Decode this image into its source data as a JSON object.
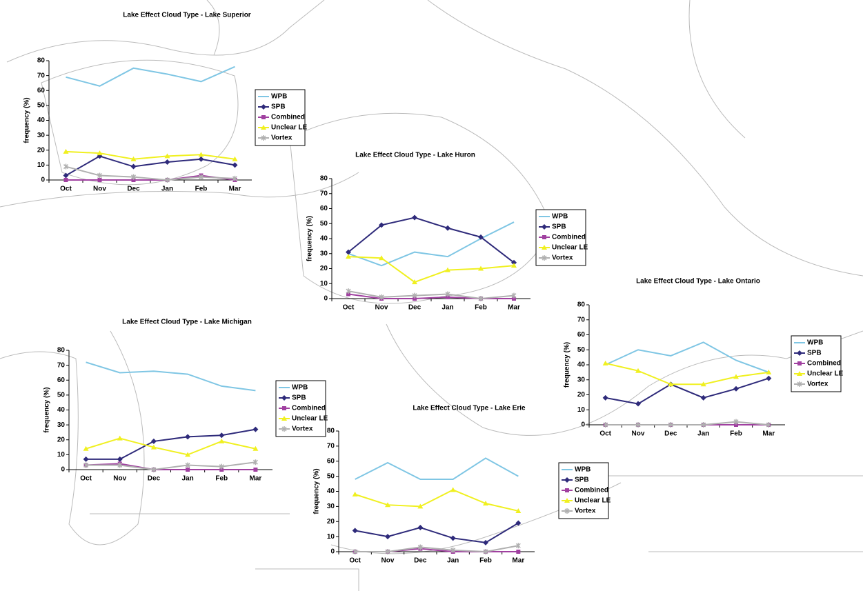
{
  "chart_data": [
    {
      "type": "line",
      "title": "Lake Effect Cloud Type - Lake Superior",
      "y_label": "frequency (%)",
      "categories": [
        "Oct",
        "Nov",
        "Dec",
        "Jan",
        "Feb",
        "Mar"
      ],
      "ylim": [
        0,
        80
      ],
      "yticks": [
        0,
        10,
        20,
        30,
        40,
        50,
        60,
        70,
        80
      ],
      "series": [
        {
          "name": "WPB",
          "color": "#7fc6e4",
          "values": [
            69,
            63,
            75,
            71,
            66,
            76
          ]
        },
        {
          "name": "SPB",
          "color": "#2e2a7a",
          "values": [
            3,
            16,
            9,
            12,
            14,
            10
          ]
        },
        {
          "name": "Combined",
          "color": "#a040a0",
          "values": [
            0,
            0,
            0,
            0,
            3,
            0
          ]
        },
        {
          "name": "Unclear LE",
          "color": "#f0f020",
          "values": [
            19,
            18,
            14,
            16,
            17,
            14
          ]
        },
        {
          "name": "Vortex",
          "color": "#b0b0b0",
          "values": [
            9,
            3,
            2,
            0,
            2,
            1
          ]
        }
      ]
    },
    {
      "type": "line",
      "title": "Lake Effect Cloud Type - Lake Huron",
      "y_label": "frequency (%)",
      "categories": [
        "Oct",
        "Nov",
        "Dec",
        "Jan",
        "Feb",
        "Mar"
      ],
      "ylim": [
        0,
        80
      ],
      "yticks": [
        0,
        10,
        20,
        30,
        40,
        50,
        60,
        70,
        80
      ],
      "series": [
        {
          "name": "WPB",
          "color": "#7fc6e4",
          "values": [
            30,
            22,
            31,
            28,
            40,
            51
          ]
        },
        {
          "name": "SPB",
          "color": "#2e2a7a",
          "values": [
            31,
            49,
            54,
            47,
            41,
            24
          ]
        },
        {
          "name": "Combined",
          "color": "#a040a0",
          "values": [
            3,
            0,
            0,
            1,
            0,
            0
          ]
        },
        {
          "name": "Unclear LE",
          "color": "#f0f020",
          "values": [
            28,
            27,
            11,
            19,
            20,
            22
          ]
        },
        {
          "name": "Vortex",
          "color": "#b0b0b0",
          "values": [
            5,
            1,
            2,
            3,
            0,
            2
          ]
        }
      ]
    },
    {
      "type": "line",
      "title": "Lake Effect Cloud Type - Lake Ontario",
      "y_label": "frequency (%)",
      "categories": [
        "Oct",
        "Nov",
        "Dec",
        "Jan",
        "Feb",
        "Mar"
      ],
      "ylim": [
        0,
        80
      ],
      "yticks": [
        0,
        10,
        20,
        30,
        40,
        50,
        60,
        70,
        80
      ],
      "series": [
        {
          "name": "WPB",
          "color": "#7fc6e4",
          "values": [
            40,
            50,
            46,
            55,
            43,
            35
          ]
        },
        {
          "name": "SPB",
          "color": "#2e2a7a",
          "values": [
            18,
            14,
            27,
            18,
            24,
            31
          ]
        },
        {
          "name": "Combined",
          "color": "#a040a0",
          "values": [
            0,
            0,
            0,
            0,
            0,
            0
          ]
        },
        {
          "name": "Unclear LE",
          "color": "#f0f020",
          "values": [
            41,
            36,
            27,
            27,
            32,
            35
          ]
        },
        {
          "name": "Vortex",
          "color": "#b0b0b0",
          "values": [
            0,
            0,
            0,
            0,
            2,
            0
          ]
        }
      ]
    },
    {
      "type": "line",
      "title": "Lake Effect Cloud Type - Lake Michigan",
      "y_label": "frequency (%)",
      "categories": [
        "Oct",
        "Nov",
        "Dec",
        "Jan",
        "Feb",
        "Mar"
      ],
      "ylim": [
        0,
        80
      ],
      "yticks": [
        0,
        10,
        20,
        30,
        40,
        50,
        60,
        70,
        80
      ],
      "series": [
        {
          "name": "WPB",
          "color": "#7fc6e4",
          "values": [
            72,
            65,
            66,
            64,
            56,
            53
          ]
        },
        {
          "name": "SPB",
          "color": "#2e2a7a",
          "values": [
            7,
            7,
            19,
            22,
            23,
            27
          ]
        },
        {
          "name": "Combined",
          "color": "#a040a0",
          "values": [
            3,
            4,
            0,
            0,
            0,
            0
          ]
        },
        {
          "name": "Unclear LE",
          "color": "#f0f020",
          "values": [
            14,
            21,
            15,
            10,
            19,
            14
          ]
        },
        {
          "name": "Vortex",
          "color": "#b0b0b0",
          "values": [
            3,
            3,
            0,
            3,
            2,
            5
          ]
        }
      ]
    },
    {
      "type": "line",
      "title": "Lake Effect Cloud Type - Lake Erie",
      "y_label": "frequency (%)",
      "categories": [
        "Oct",
        "Nov",
        "Dec",
        "Jan",
        "Feb",
        "Mar"
      ],
      "ylim": [
        0,
        80
      ],
      "yticks": [
        0,
        10,
        20,
        30,
        40,
        50,
        60,
        70,
        80
      ],
      "series": [
        {
          "name": "WPB",
          "color": "#7fc6e4",
          "values": [
            48,
            59,
            48,
            48,
            62,
            50
          ]
        },
        {
          "name": "SPB",
          "color": "#2e2a7a",
          "values": [
            14,
            10,
            16,
            9,
            6,
            19
          ]
        },
        {
          "name": "Combined",
          "color": "#a040a0",
          "values": [
            0,
            0,
            2,
            0,
            0,
            0
          ]
        },
        {
          "name": "Unclear LE",
          "color": "#f0f020",
          "values": [
            38,
            31,
            30,
            41,
            32,
            27
          ]
        },
        {
          "name": "Vortex",
          "color": "#b0b0b0",
          "values": [
            0,
            0,
            3,
            1,
            0,
            4
          ]
        }
      ]
    }
  ]
}
